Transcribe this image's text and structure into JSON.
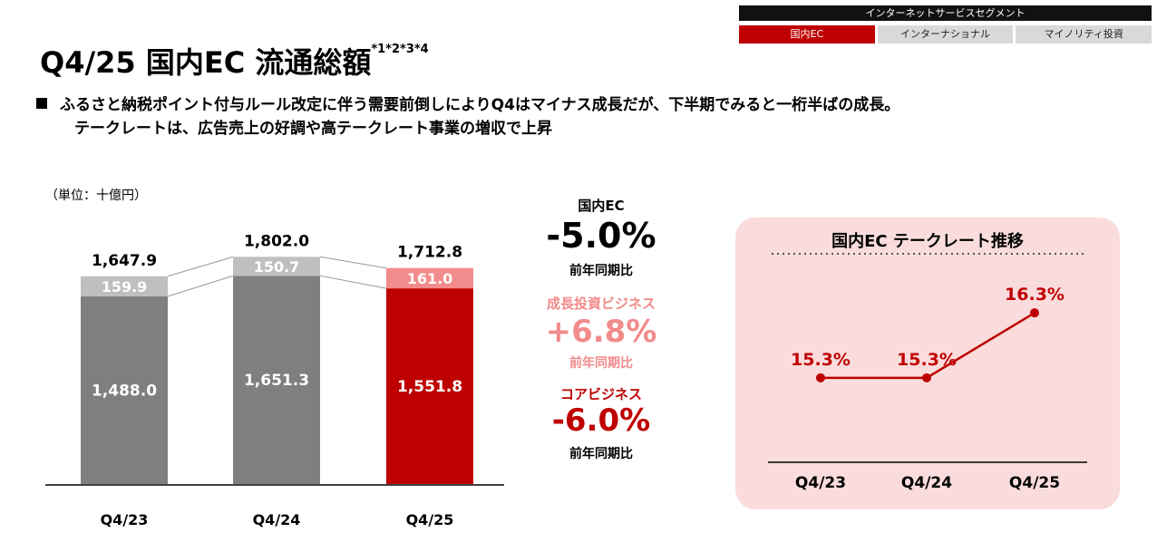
{
  "segment": {
    "header": "インターネットサービスセグメント",
    "tabs": [
      "国内EC",
      "インターナショナル",
      "マイノリティ投資"
    ],
    "active_tab": 0
  },
  "title": {
    "main": "Q4/25 国内EC 流通総額",
    "footnote": "*1*2*3*4"
  },
  "bullet": {
    "line1": "ふるさと納税ポイント付与ルール改定に伴う需要前倒しによりQ4はマイナス成長だが、下半期でみると一桁半ばの成長。",
    "line2": "テークレートは、広告売上の好調や高テークレート事業の増収で上昇"
  },
  "colors": {
    "accent": "#bf0000",
    "dark_gray": "#7f7f7f",
    "light_gray": "#bfbfbf",
    "pink": "#f28b8b",
    "panel_bg": "#fadcdc"
  },
  "chart_data": [
    {
      "type": "bar",
      "stacked": true,
      "unit_label": "（単位：十億円）",
      "categories": [
        "Q4/23",
        "Q4/24",
        "Q4/25"
      ],
      "series": [
        {
          "values": [
            1488.0,
            1651.3,
            1551.8
          ],
          "labels": [
            "1,488.0",
            "1,651.3",
            "1,551.8"
          ]
        },
        {
          "values": [
            159.9,
            150.7,
            161.0
          ],
          "labels": [
            "159.9",
            "150.7",
            "161.0"
          ]
        }
      ],
      "totals": [
        1647.9,
        1802.0,
        1712.8
      ],
      "total_labels": [
        "1,647.9",
        "1,802.0",
        "1,712.8"
      ],
      "ylim": [
        0,
        1900
      ]
    },
    {
      "type": "line",
      "title": "国内EC テークレート推移",
      "categories": [
        "Q4/23",
        "Q4/24",
        "Q4/25"
      ],
      "values": [
        15.3,
        15.3,
        16.3
      ],
      "labels": [
        "15.3%",
        "15.3%",
        "16.3%"
      ],
      "ylim": [
        14.0,
        17.0
      ]
    }
  ],
  "kpis": {
    "total": {
      "label": "国内EC",
      "value": "-5.0%",
      "sub": "前年同期比"
    },
    "growth": {
      "label": "成長投資ビジネス",
      "value": "+6.8%",
      "sub": "前年同期比"
    },
    "core": {
      "label": "コアビジネス",
      "value": "-6.0%",
      "sub": "前年同期比"
    }
  }
}
